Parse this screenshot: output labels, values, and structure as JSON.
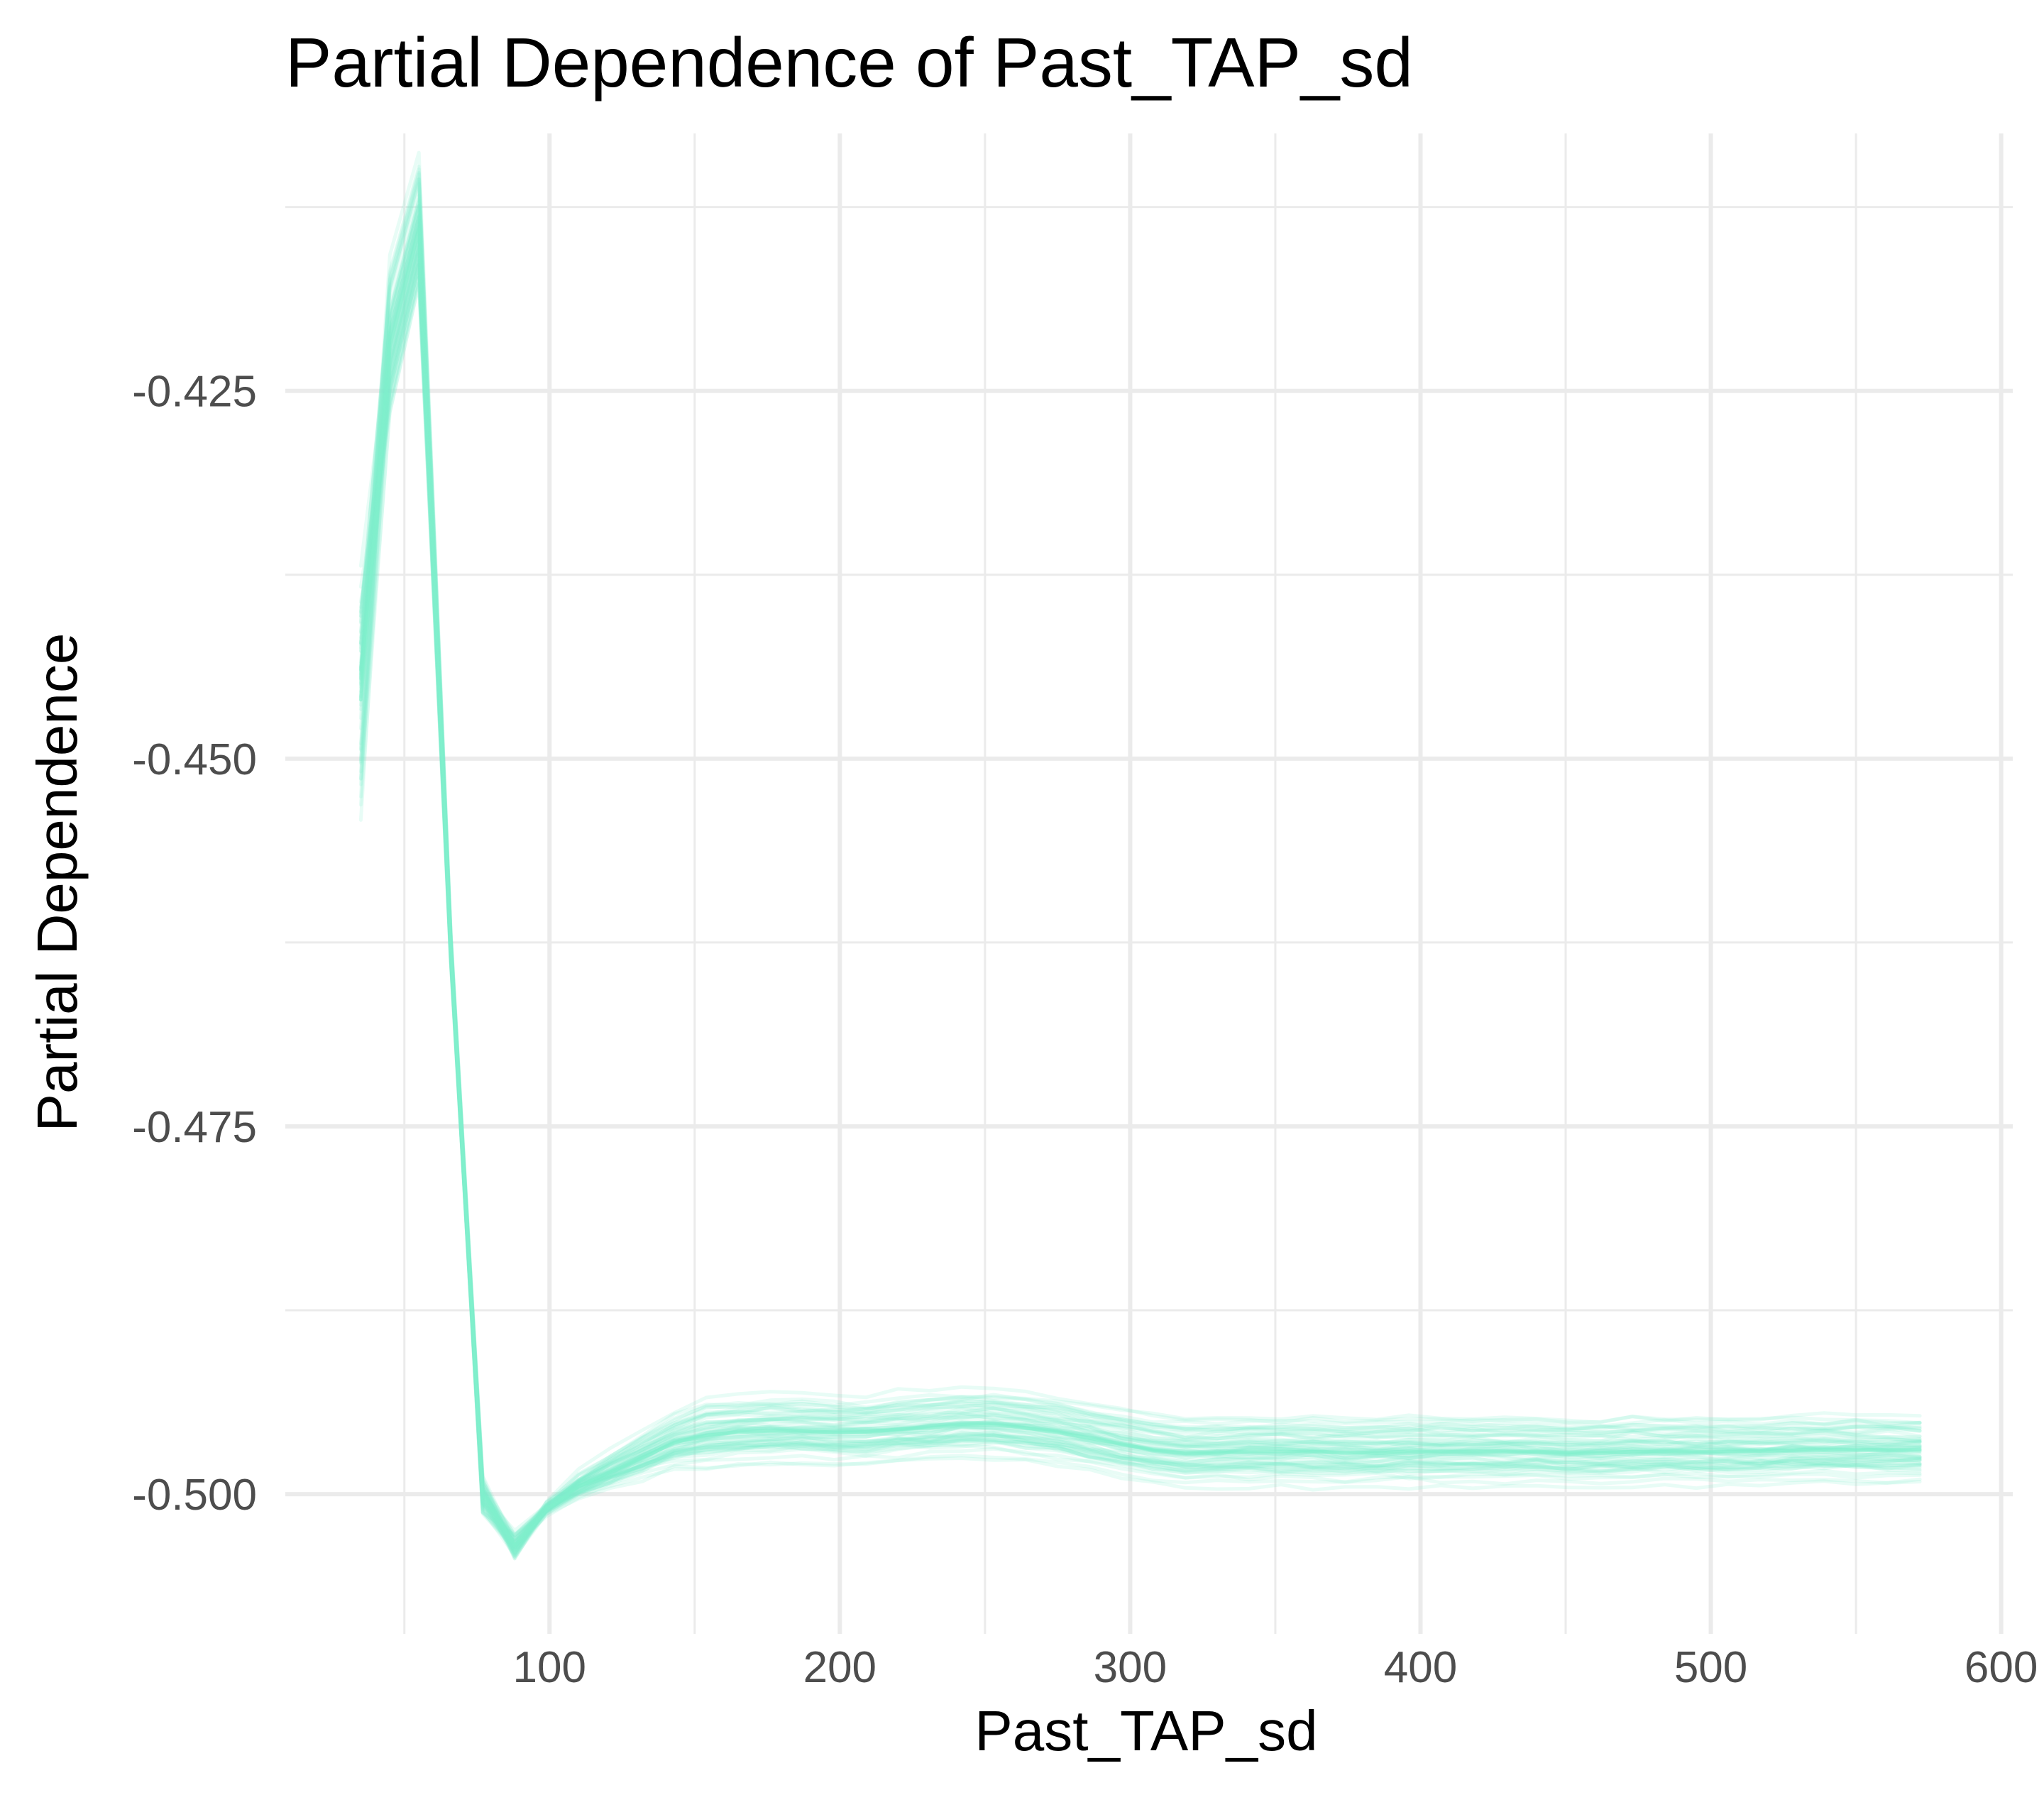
{
  "chart_data": {
    "type": "line",
    "title": "Partial Dependence of Past_TAP_sd",
    "xlabel": "Past_TAP_sd",
    "ylabel": "Partial Dependence",
    "x_ticks": [
      100,
      200,
      300,
      400,
      500,
      600
    ],
    "y_ticks": [
      -0.5,
      -0.475,
      -0.45,
      -0.425
    ],
    "y_tick_labels": [
      "-0.500",
      "-0.475",
      "-0.450",
      "-0.425"
    ],
    "x_tick_labels": [
      "100",
      "200",
      "300",
      "400",
      "500",
      "600"
    ],
    "xlim": [
      9,
      604
    ],
    "ylim": [
      -0.5095,
      -0.4075
    ],
    "grid": true,
    "line_color": "#7FF0CC",
    "line_opacity": 0.18,
    "series_count": 60,
    "x": [
      35,
      45,
      55,
      66,
      77,
      88,
      99,
      110,
      121,
      132,
      143,
      154,
      165,
      176,
      187,
      198,
      209,
      220,
      231,
      242,
      253,
      264,
      275,
      286,
      297,
      308,
      319,
      330,
      341,
      352,
      363,
      374,
      385,
      396,
      407,
      418,
      429,
      440,
      451,
      462,
      473,
      484,
      495,
      506,
      517,
      528,
      539,
      550,
      561,
      572
    ],
    "center_curve": [
      -0.446,
      -0.422,
      -0.414,
      -0.463,
      -0.5,
      -0.5035,
      -0.501,
      -0.4995,
      -0.4985,
      -0.4975,
      -0.4965,
      -0.496,
      -0.4958,
      -0.4957,
      -0.4957,
      -0.4958,
      -0.4958,
      -0.4956,
      -0.4955,
      -0.4953,
      -0.4953,
      -0.4955,
      -0.4958,
      -0.4962,
      -0.4966,
      -0.497,
      -0.4972,
      -0.4972,
      -0.4971,
      -0.4971,
      -0.4971,
      -0.4972,
      -0.4972,
      -0.4971,
      -0.4971,
      -0.4971,
      -0.4971,
      -0.4971,
      -0.4972,
      -0.4972,
      -0.4971,
      -0.4971,
      -0.4971,
      -0.4971,
      -0.4971,
      -0.497,
      -0.497,
      -0.497,
      -0.497,
      -0.497
    ]
  }
}
